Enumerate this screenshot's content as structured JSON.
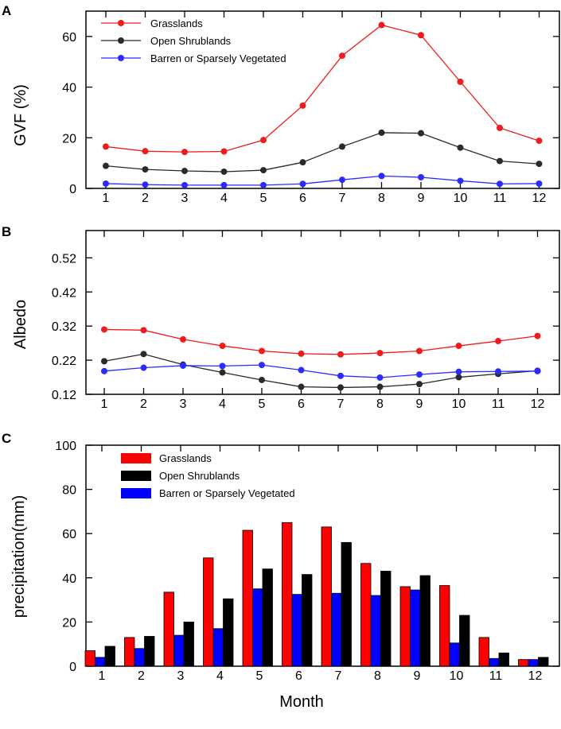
{
  "chart_data": [
    {
      "panel": "A",
      "type": "line",
      "ylabel": "GVF (%)",
      "xlabel": "",
      "categories": [
        "1",
        "2",
        "3",
        "4",
        "5",
        "6",
        "7",
        "8",
        "9",
        "10",
        "11",
        "12"
      ],
      "ylim": [
        0,
        70
      ],
      "yticks": [
        0,
        20,
        40,
        60
      ],
      "legend": "top-left",
      "series": [
        {
          "name": "Grasslands",
          "color": "#ee1c1c",
          "values": [
            16.5,
            14.7,
            14.4,
            14.6,
            19.1,
            32.7,
            52.4,
            64.5,
            60.5,
            42.1,
            23.9,
            18.8
          ]
        },
        {
          "name": "Open Shrublands",
          "color": "#2a2a2a",
          "values": [
            8.9,
            7.5,
            6.9,
            6.6,
            7.2,
            10.3,
            16.5,
            22.0,
            21.8,
            16.1,
            10.8,
            9.7
          ]
        },
        {
          "name": "Barren or Sparsely Vegetated",
          "color": "#2b2bff",
          "values": [
            1.9,
            1.5,
            1.3,
            1.3,
            1.3,
            1.8,
            3.4,
            4.9,
            4.4,
            3.0,
            1.8,
            1.9
          ]
        }
      ]
    },
    {
      "panel": "B",
      "type": "line",
      "ylabel": "Albedo",
      "xlabel": "",
      "categories": [
        "1",
        "2",
        "3",
        "4",
        "5",
        "6",
        "7",
        "8",
        "9",
        "10",
        "11",
        "12"
      ],
      "ylim": [
        0.12,
        0.6
      ],
      "yticks": [
        "0.12",
        "0.22",
        "0.32",
        "0.42",
        "0.52"
      ],
      "series": [
        {
          "name": "Grasslands",
          "color": "#ee1c1c",
          "values": [
            0.31,
            0.308,
            0.281,
            0.262,
            0.247,
            0.239,
            0.237,
            0.241,
            0.247,
            0.262,
            0.276,
            0.291
          ]
        },
        {
          "name": "Open Shrublands",
          "color": "#2a2a2a",
          "values": [
            0.217,
            0.238,
            0.207,
            0.184,
            0.162,
            0.142,
            0.14,
            0.142,
            0.15,
            0.17,
            0.18,
            0.189
          ]
        },
        {
          "name": "Barren or Sparsely Vegetated",
          "color": "#2b2bff",
          "values": [
            0.188,
            0.198,
            0.204,
            0.203,
            0.206,
            0.191,
            0.174,
            0.169,
            0.178,
            0.186,
            0.187,
            0.188
          ]
        }
      ]
    },
    {
      "panel": "C",
      "type": "bar",
      "ylabel": "precipitation(mm)",
      "xlabel": "Month",
      "categories": [
        "1",
        "2",
        "3",
        "4",
        "5",
        "6",
        "7",
        "8",
        "9",
        "10",
        "11",
        "12"
      ],
      "ylim": [
        0,
        100
      ],
      "yticks": [
        0,
        20,
        40,
        60,
        80,
        100
      ],
      "legend": "top-left",
      "series": [
        {
          "name": "Grasslands",
          "color": "#ff0000",
          "values": [
            7.0,
            13.0,
            33.5,
            49.0,
            61.5,
            65.0,
            63.0,
            46.5,
            36.0,
            36.5,
            13.0,
            3.0
          ]
        },
        {
          "name": "Barren or Sparsely Vegetated",
          "color": "#0000ff",
          "values": [
            4.0,
            8.0,
            14.0,
            17.0,
            35.0,
            32.5,
            33.0,
            32.0,
            34.5,
            10.5,
            3.5,
            3.0
          ]
        },
        {
          "name": "Open Shrublands",
          "color": "#000000",
          "values": [
            9.0,
            13.5,
            20.0,
            30.5,
            44.0,
            41.5,
            56.0,
            43.0,
            41.0,
            23.0,
            6.0,
            4.0
          ]
        }
      ]
    }
  ]
}
